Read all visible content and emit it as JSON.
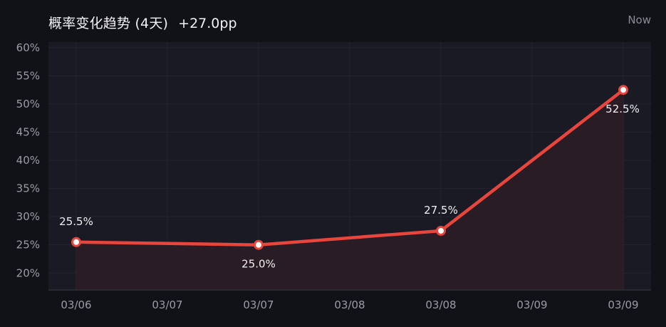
{
  "header": {
    "title": "概率变化趋势 (4天)",
    "delta": "+27.0pp",
    "timeframe": "Now"
  },
  "colors": {
    "line": "#e8453c",
    "fill": "#2c1d25",
    "plot_bg": "#191a24",
    "grid": "#23242e"
  },
  "chart_data": {
    "type": "line",
    "x_tick_labels": [
      "03/06",
      "03/07",
      "03/07",
      "03/08",
      "03/08",
      "03/09",
      "03/09"
    ],
    "y_tick_labels": [
      "20%",
      "25%",
      "30%",
      "35%",
      "40%",
      "45%",
      "50%",
      "55%",
      "60%"
    ],
    "y_ticks": [
      20,
      25,
      30,
      35,
      40,
      45,
      50,
      55,
      60
    ],
    "ylim": [
      17,
      61
    ],
    "points": [
      {
        "x": 0,
        "y": 25.5,
        "label": "25.5%",
        "label_pos": "above"
      },
      {
        "x": 2,
        "y": 25.0,
        "label": "25.0%",
        "label_pos": "below"
      },
      {
        "x": 4,
        "y": 27.5,
        "label": "27.5%",
        "label_pos": "above"
      },
      {
        "x": 6,
        "y": 52.5,
        "label": "52.5%",
        "label_pos": "below"
      }
    ],
    "grid": true,
    "legend": "none"
  }
}
